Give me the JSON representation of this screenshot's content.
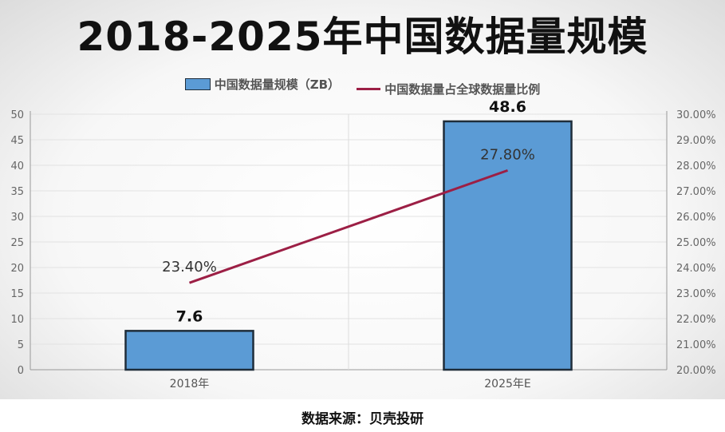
{
  "chart_data": {
    "type": "bar",
    "title": "2018-2025年中国数据量规模",
    "categories": [
      "2018年",
      "2025年E"
    ],
    "series": [
      {
        "name": "中国数据量规模（ZB）",
        "type": "bar",
        "axis": "left",
        "values": [
          7.6,
          48.6
        ],
        "labels": [
          "7.6",
          "48.6"
        ],
        "color": "#5b9bd5"
      },
      {
        "name": "中国数据量占全球数据量比例",
        "type": "line",
        "axis": "right",
        "values": [
          23.4,
          27.8
        ],
        "labels": [
          "23.40%",
          "27.80%"
        ],
        "color": "#9c1f45"
      }
    ],
    "y_left": {
      "min": 0,
      "max": 50,
      "ticks": [
        "0",
        "5",
        "10",
        "15",
        "20",
        "25",
        "30",
        "35",
        "40",
        "45",
        "50"
      ]
    },
    "y_right": {
      "min": 20,
      "max": 30,
      "ticks": [
        "20.00%",
        "21.00%",
        "22.00%",
        "23.00%",
        "24.00%",
        "25.00%",
        "26.00%",
        "27.00%",
        "28.00%",
        "29.00%",
        "30.00%"
      ]
    },
    "grid": "horizontal",
    "legend_position": "top"
  },
  "source": "数据来源：贝壳投研"
}
